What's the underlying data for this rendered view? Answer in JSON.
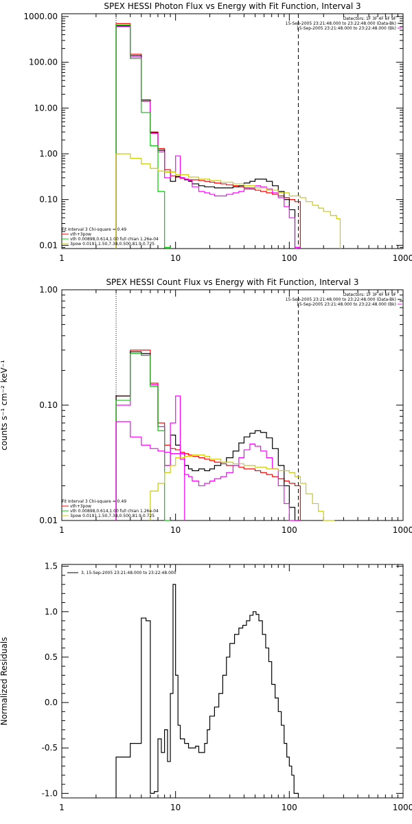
{
  "chart_data": [
    {
      "id": "photon",
      "type": "line",
      "title": "SPEX HESSI Photon Flux vs Energy with Fit Function, Interval 3",
      "xscale": "log",
      "yscale": "log",
      "xlim": [
        1,
        1000
      ],
      "ylim": [
        0.0085,
        1150
      ],
      "xticks": [
        1,
        10,
        100,
        1000
      ],
      "xticklabels": [
        "1",
        "10",
        "100",
        "1000"
      ],
      "yticks": [
        0.01,
        0.1,
        1,
        10,
        100,
        1000
      ],
      "yticklabels": [
        "0.01",
        "0.10",
        "1.00",
        "10.00",
        "100.00",
        "1000.00"
      ],
      "ylabel": "",
      "vlines": [
        {
          "x": 3,
          "style": "dotted"
        },
        {
          "x": 120,
          "style": "dashed"
        }
      ],
      "legend_tr": [
        "Detectors: 1F 3F 4F 6F 9F",
        "15-Sep-2005 23:21:48.000 to 23:22:48.000 (Data-Bk)",
        "15-Sep-2005 23:21:48.000 to 23:22:48.000 (Bk)"
      ],
      "legend_bl": [
        "Fit Interval 3   Chi-square = 0.49",
        "vth+3pow",
        "vth 0.00898,0.614,1.00  full chian 1.26e-04",
        "3pow 0.0191,1.50,7.38,0.500,81.9,0.725"
      ],
      "colors": {
        "data": "#000000",
        "bk": "#ff00ff",
        "total": "#ff0000",
        "vth": "#00cc00",
        "pow": "#cccc00"
      },
      "edges": [
        3,
        4,
        5,
        6,
        7,
        8,
        9,
        10,
        11,
        12,
        13,
        14,
        16,
        18,
        20,
        22,
        25,
        28,
        32,
        36,
        40,
        45,
        50,
        56,
        63,
        71,
        80,
        90,
        100,
        112,
        125
      ],
      "series": [
        {
          "key": "total",
          "values": [
            700,
            150,
            15,
            3,
            1.3,
            0.45,
            0.33,
            0.31,
            0.29,
            0.28,
            0.27,
            0.27,
            0.26,
            0.25,
            0.24,
            0.23,
            0.22,
            0.21,
            0.2,
            0.19,
            0.18,
            0.17,
            0.16,
            0.15,
            0.14,
            0.13,
            0.12,
            0.11,
            0.1,
            0.09
          ]
        },
        {
          "key": "data",
          "values": [
            620,
            140,
            15,
            2.9,
            1.2,
            0.4,
            0.25,
            0.32,
            0.3,
            0.27,
            0.25,
            0.22,
            0.2,
            0.19,
            0.19,
            0.18,
            0.18,
            0.18,
            0.19,
            0.2,
            0.23,
            0.25,
            0.28,
            0.28,
            0.25,
            0.2,
            0.15,
            0.1,
            0.06,
            0.009
          ]
        },
        {
          "key": "bk",
          "values": [
            600,
            130,
            14,
            2.8,
            1.1,
            0.3,
            0.4,
            0.9,
            0.3,
            0.28,
            0.26,
            0.19,
            0.15,
            0.14,
            0.13,
            0.12,
            0.12,
            0.13,
            0.14,
            0.15,
            0.17,
            0.18,
            0.2,
            0.19,
            0.17,
            0.14,
            0.11,
            0.07,
            0.04,
            0.009
          ]
        },
        {
          "key": "vth",
          "values": [
            650,
            120,
            8,
            1.5,
            0.15,
            0.009
          ]
        },
        {
          "key": "pow",
          "edges": [
            3,
            4,
            5,
            6,
            7,
            8,
            10,
            13,
            16,
            20,
            25,
            32,
            40,
            50,
            63,
            80,
            100,
            125,
            140,
            160,
            180,
            200,
            230,
            260,
            280
          ],
          "values": [
            1.0,
            0.8,
            0.6,
            0.48,
            0.42,
            0.4,
            0.35,
            0.31,
            0.28,
            0.26,
            0.24,
            0.22,
            0.2,
            0.18,
            0.16,
            0.14,
            0.12,
            0.11,
            0.09,
            0.075,
            0.065,
            0.055,
            0.045,
            0.038
          ]
        }
      ]
    },
    {
      "id": "count",
      "type": "line",
      "title": "SPEX HESSI Count Flux vs Energy with Fit Function, Interval 3",
      "xscale": "log",
      "yscale": "log",
      "xlim": [
        1,
        1000
      ],
      "ylim": [
        0.01,
        1.0
      ],
      "xticks": [
        1,
        10,
        100,
        1000
      ],
      "xticklabels": [
        "1",
        "10",
        "100",
        "1000"
      ],
      "yticks": [
        0.01,
        0.1,
        1
      ],
      "yticklabels": [
        "0.01",
        "0.10",
        "1.00"
      ],
      "ylabel": "counts s⁻¹ cm⁻² keV⁻¹",
      "vlines": [
        {
          "x": 3,
          "style": "dotted"
        },
        {
          "x": 120,
          "style": "dashed"
        }
      ],
      "legend_tr": [
        "Detectors: 1F 3F 4F 6F 9F",
        "15-Sep-2005 23:21:48.000 to 23:22:48.000 (Data-Bk)",
        "15-Sep-2005 23:21:48.000 to 23:22:48.000 (Bk)"
      ],
      "legend_bl": [
        "Fit Interval 3   Chi-square = 0.49",
        "vth+3pow",
        "vth 0.00898,0.614,1.00  full chian 1.26e-04",
        "3pow 0.0191,1.50,7.38,0.500,81.9,0.725"
      ],
      "colors": {
        "data": "#000000",
        "bk": "#ff00ff",
        "total": "#ff0000",
        "vth": "#00cc00",
        "pow": "#cccc00"
      },
      "edges": [
        3,
        4,
        5,
        6,
        7,
        8,
        9,
        10,
        11,
        12,
        13,
        14,
        16,
        18,
        20,
        22,
        25,
        28,
        32,
        36,
        40,
        45,
        50,
        56,
        63,
        71,
        80,
        90,
        100,
        112,
        125
      ],
      "series": [
        {
          "key": "total",
          "values": [
            0.12,
            0.3,
            0.3,
            0.155,
            0.07,
            0.045,
            0.042,
            0.041,
            0.039,
            0.038,
            0.037,
            0.036,
            0.035,
            0.034,
            0.033,
            0.032,
            0.031,
            0.03,
            0.03,
            0.029,
            0.028,
            0.028,
            0.027,
            0.026,
            0.025,
            0.024,
            0.023,
            0.022,
            0.021,
            0.02
          ]
        },
        {
          "key": "data",
          "values": [
            0.12,
            0.29,
            0.28,
            0.15,
            0.065,
            0.03,
            0.055,
            0.045,
            0.038,
            0.03,
            0.028,
            0.027,
            0.028,
            0.027,
            0.028,
            0.03,
            0.032,
            0.035,
            0.04,
            0.047,
            0.053,
            0.057,
            0.06,
            0.058,
            0.052,
            0.042,
            0.03,
            0.02,
            0.013,
            0.01
          ]
        },
        {
          "key": "bk",
          "values": [
            0.1,
            0.28,
            0.27,
            0.15,
            0.065,
            0.03,
            0.07,
            0.12,
            0.034,
            0.025,
            0.024,
            0.022,
            0.02,
            0.021,
            0.022,
            0.023,
            0.024,
            0.026,
            0.03,
            0.035,
            0.041,
            0.046,
            0.044,
            0.04,
            0.035,
            0.028,
            0.02,
            0.014,
            0.01,
            0.009
          ]
        },
        {
          "key": "vth",
          "values": [
            0.11,
            0.28,
            0.27,
            0.145,
            0.06,
            0.009
          ]
        },
        {
          "key": "pow0",
          "edges": [
            3,
            4,
            5,
            6,
            7,
            8,
            9,
            10,
            11,
            12
          ],
          "values": [
            0.072,
            0.053,
            0.045,
            0.042,
            0.04,
            0.039,
            0.038,
            0.038,
            0.038
          ],
          "color": "#ff00ff"
        },
        {
          "key": "pow",
          "edges": [
            6,
            7,
            8,
            9,
            10,
            12,
            14,
            16,
            18,
            20,
            25,
            32,
            40,
            50,
            63,
            80,
            100,
            112,
            125,
            140,
            160,
            180,
            200,
            230,
            250
          ],
          "values": [
            0.018,
            0.021,
            0.026,
            0.03,
            0.035,
            0.036,
            0.037,
            0.037,
            0.036,
            0.034,
            0.032,
            0.031,
            0.03,
            0.029,
            0.028,
            0.027,
            0.026,
            0.024,
            0.021,
            0.017,
            0.014,
            0.012,
            0.01,
            0.009
          ]
        }
      ]
    },
    {
      "id": "resid",
      "type": "line",
      "title": "",
      "xscale": "log",
      "yscale": "linear",
      "xlim": [
        1,
        1000
      ],
      "ylim": [
        -1.05,
        1.52
      ],
      "xticks": [
        1,
        10,
        100,
        1000
      ],
      "xticklabels": [
        "1",
        "10",
        "100",
        "1000"
      ],
      "yticks": [
        -1.0,
        -0.5,
        0.0,
        0.5,
        1.0,
        1.5
      ],
      "yticklabels": [
        "-1.0",
        "-0.5",
        "0.0",
        "0.5",
        "1.0",
        "1.5"
      ],
      "ylabel": "Normalized Residuals",
      "legend_tl": [
        "3, 15-Sep-2005 23:21:48.000 to 23:22:48.000"
      ],
      "edges": [
        3,
        4,
        5,
        5.5,
        6,
        6.5,
        7,
        7.5,
        8,
        8.5,
        9,
        9.5,
        10,
        10.5,
        11,
        12,
        13,
        14,
        15,
        16,
        17,
        18,
        19,
        20,
        22,
        24,
        26,
        28,
        30,
        33,
        36,
        39,
        42,
        45,
        48,
        51,
        54,
        58,
        62,
        66,
        70,
        75,
        80,
        85,
        90,
        95,
        100,
        105,
        110,
        115,
        120
      ],
      "series": [
        {
          "key": "resid",
          "values": [
            -0.6,
            -0.45,
            0.93,
            0.9,
            -1.0,
            -0.98,
            -0.4,
            -0.55,
            -0.3,
            -0.65,
            0.1,
            1.3,
            0.3,
            -0.25,
            -0.4,
            -0.45,
            -0.5,
            -0.5,
            -0.48,
            -0.55,
            -0.55,
            -0.45,
            -0.3,
            -0.15,
            -0.05,
            0.1,
            0.3,
            0.5,
            0.65,
            0.75,
            0.82,
            0.85,
            0.9,
            0.96,
            1.0,
            0.97,
            0.9,
            0.75,
            0.6,
            0.45,
            0.2,
            0.05,
            -0.1,
            -0.25,
            -0.45,
            -0.6,
            -0.7,
            -0.8,
            -1.0,
            -1.0
          ],
          "color": "#000000"
        }
      ]
    }
  ]
}
